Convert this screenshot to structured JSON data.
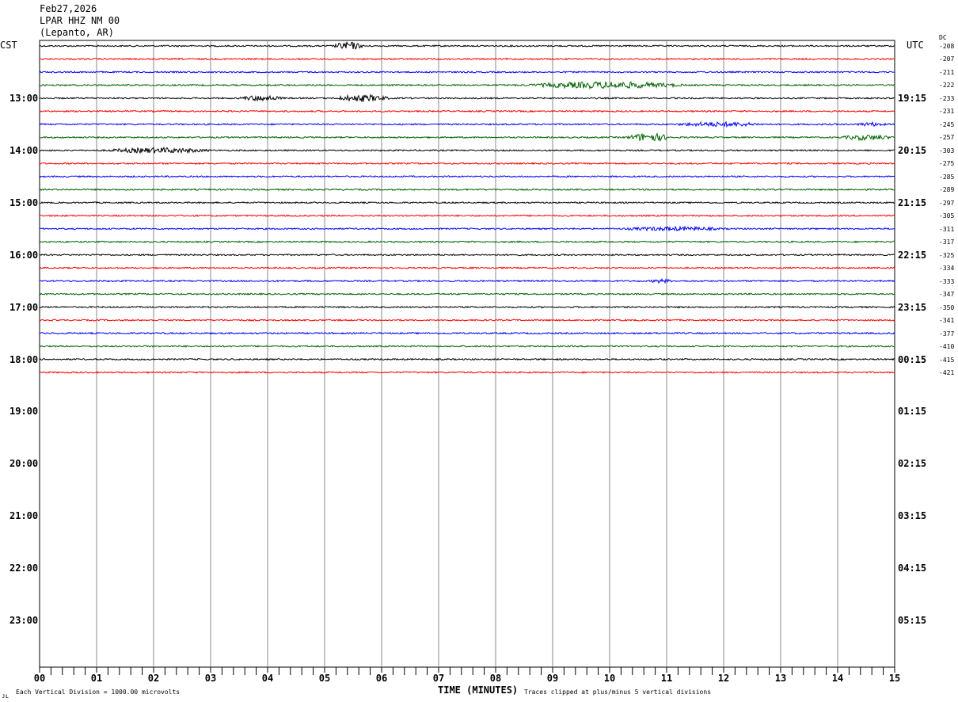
{
  "header": {
    "date": "Feb27,2026",
    "station": "LPAR HHZ NM 00",
    "location": "(Lepanto, AR)"
  },
  "left_axis_title": "CST",
  "right_axis_title": "UTC",
  "dc_title": "DC",
  "footer": {
    "scale_note": "Each Vertical Division = 1000.00 microvolts",
    "xlabel": "TIME (MINUTES)",
    "clip_note": "Traces clipped at plus/minus 5 vertical divisions"
  },
  "chart_data": {
    "type": "line",
    "subtype": "helicorder",
    "xlabel": "TIME (MINUTES)",
    "xlim": [
      0,
      15
    ],
    "x_ticks": [
      "00",
      "01",
      "02",
      "03",
      "04",
      "05",
      "06",
      "07",
      "08",
      "09",
      "10",
      "11",
      "12",
      "13",
      "14",
      "15"
    ],
    "left_hour_labels": [
      "13:00",
      "14:00",
      "15:00",
      "16:00",
      "17:00",
      "18:00",
      "19:00",
      "20:00",
      "21:00",
      "22:00",
      "23:00"
    ],
    "right_hour_labels": [
      "19:15",
      "20:15",
      "21:15",
      "22:15",
      "23:15",
      "00:15",
      "01:15",
      "02:15",
      "03:15",
      "04:15",
      "05:15"
    ],
    "trace_colors": [
      "#000000",
      "#ff0000",
      "#0000ff",
      "#006400"
    ],
    "dc_offsets": [
      "-208",
      "-207",
      "-211",
      "-222",
      "-233",
      "-231",
      "-245",
      "-257",
      "-303",
      "-275",
      "-285",
      "-289",
      "-297",
      "-305",
      "-311",
      "-317",
      "-325",
      "-334",
      "-333",
      "-347",
      "-350",
      "-341",
      "-377",
      "-410",
      "-415",
      "-421"
    ],
    "grid": true
  }
}
